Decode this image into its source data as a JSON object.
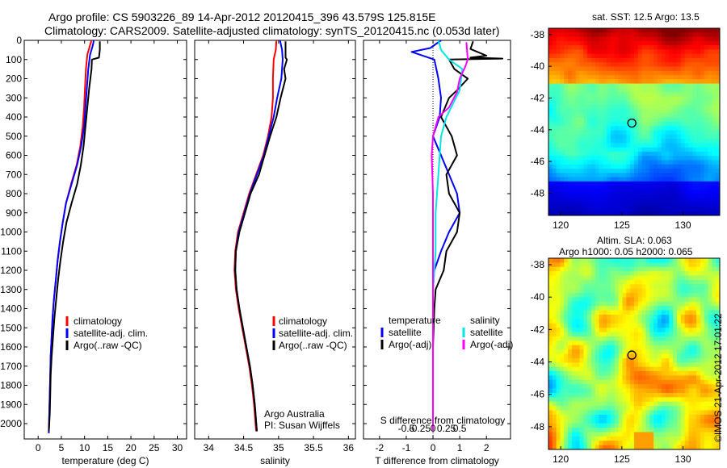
{
  "figure": {
    "title_line1": "Argo profile: CS 5903226_89 14-Apr-2012 20120415_396 43.579S 125.815E",
    "title_line2": "Climatology: CARS2009. Satellite-adjusted climatology: synTS_20120415.nc (0.053d later)",
    "side_caption": "©IMOS 21-Apr-2012 17:01:22",
    "credit_line1": "Argo Australia",
    "credit_line2": "PI: Susan Wijffels"
  },
  "colors": {
    "climatology": "#ff0000",
    "satellite": "#0000ff",
    "argo": "#000000",
    "salinity_satellite": "#00e5e5",
    "salinity_argo": "#ff00ff"
  },
  "chart_data": [
    {
      "type": "line",
      "xlabel": "temperature (deg C)",
      "ylabel": "",
      "xlim": [
        -3,
        32
      ],
      "ylim": [
        2080,
        0
      ],
      "xticks": [
        0,
        5,
        10,
        15,
        20,
        25,
        30
      ],
      "yticks": [
        0,
        100,
        200,
        300,
        400,
        500,
        600,
        700,
        800,
        900,
        1000,
        1100,
        1200,
        1300,
        1400,
        1500,
        1600,
        1700,
        1800,
        1900,
        2000
      ],
      "legend": [
        "climatology",
        "satellite-adj. clim.",
        "Argo(..raw -QC)"
      ],
      "series": [
        {
          "name": "climatology",
          "color": "#ff0000",
          "x": [
            11.5,
            11.2,
            10.6,
            10.3,
            10.1,
            9.9,
            9.6,
            9.1,
            8.3,
            7.1,
            6.0,
            5.3,
            4.7,
            4.2,
            3.8,
            3.4,
            3.1,
            2.9,
            2.7,
            2.6,
            2.5,
            2.4,
            2.3
          ],
          "y": [
            0,
            25,
            75,
            150,
            250,
            350,
            450,
            550,
            650,
            750,
            850,
            950,
            1050,
            1150,
            1250,
            1350,
            1450,
            1550,
            1650,
            1750,
            1850,
            1950,
            2050
          ]
        },
        {
          "name": "satellite-adj. clim.",
          "color": "#0000ff",
          "x": [
            12.0,
            11.8,
            11.2,
            10.8,
            10.5,
            10.2,
            9.9,
            9.3,
            8.4,
            7.2,
            6.0,
            5.3,
            4.7,
            4.2,
            3.8,
            3.4,
            3.1,
            2.9,
            2.7,
            2.6,
            2.5,
            2.4,
            2.3
          ],
          "y": [
            0,
            25,
            75,
            150,
            250,
            350,
            450,
            550,
            650,
            750,
            850,
            950,
            1050,
            1150,
            1250,
            1350,
            1450,
            1550,
            1650,
            1750,
            1850,
            1950,
            2050
          ]
        },
        {
          "name": "Argo(..raw -QC)",
          "color": "#000000",
          "x": [
            13.3,
            13.3,
            13.1,
            11.6,
            11.5,
            11.0,
            10.6,
            10.2,
            9.8,
            9.2,
            8.4,
            7.2,
            6.1,
            5.4,
            4.8,
            4.3,
            3.9,
            3.5,
            3.2,
            2.9,
            2.7,
            2.6,
            2.5,
            2.4,
            2.3
          ],
          "y": [
            5,
            50,
            90,
            100,
            150,
            250,
            350,
            450,
            550,
            650,
            750,
            850,
            950,
            1050,
            1150,
            1250,
            1350,
            1450,
            1550,
            1650,
            1750,
            1850,
            1950,
            2000,
            2040
          ]
        }
      ]
    },
    {
      "type": "line",
      "xlabel": "salinity",
      "xlim": [
        33.8,
        36.1
      ],
      "ylim": [
        2080,
        0
      ],
      "xticks": [
        34,
        34.5,
        35,
        35.5,
        36
      ],
      "legend": [
        "climatology",
        "satellite-adj. clim.",
        "Argo(..raw -QC)"
      ],
      "series": [
        {
          "name": "climatology",
          "color": "#ff0000",
          "x": [
            34.97,
            34.96,
            34.93,
            34.92,
            34.92,
            34.9,
            34.85,
            34.78,
            34.68,
            34.58,
            34.5,
            34.42,
            34.38,
            34.37,
            34.39,
            34.43,
            34.48,
            34.53,
            34.58,
            34.62,
            34.65,
            34.68
          ],
          "y": [
            0,
            50,
            100,
            200,
            300,
            400,
            500,
            600,
            700,
            800,
            900,
            1000,
            1100,
            1200,
            1300,
            1400,
            1500,
            1600,
            1700,
            1800,
            1900,
            2040
          ]
        },
        {
          "name": "satellite-adj. clim.",
          "color": "#0000ff",
          "x": [
            35.02,
            35.05,
            35.06,
            35.04,
            34.98,
            34.93,
            34.86,
            34.79,
            34.69,
            34.59,
            34.51,
            34.43,
            34.39,
            34.38,
            34.4,
            34.44,
            34.49,
            34.54,
            34.59,
            34.63,
            34.66,
            34.69
          ],
          "y": [
            0,
            50,
            100,
            200,
            300,
            400,
            500,
            600,
            700,
            800,
            900,
            1000,
            1100,
            1200,
            1300,
            1400,
            1500,
            1600,
            1700,
            1800,
            1900,
            2040
          ]
        },
        {
          "name": "Argo(..raw -QC)",
          "color": "#000000",
          "x": [
            35.1,
            35.1,
            35.12,
            35.08,
            35.1,
            35.03,
            34.97,
            34.88,
            34.8,
            34.72,
            34.6,
            34.52,
            34.44,
            34.39,
            34.38,
            34.4,
            34.44,
            34.49,
            34.54,
            34.59,
            34.63,
            34.66,
            34.69
          ],
          "y": [
            5,
            90,
            100,
            150,
            200,
            300,
            400,
            500,
            600,
            700,
            800,
            900,
            1000,
            1100,
            1200,
            1300,
            1400,
            1500,
            1600,
            1700,
            1800,
            1900,
            2040
          ]
        }
      ]
    },
    {
      "type": "line",
      "xlabel": "T difference from climatology",
      "xlabel_top": "S difference from climatology",
      "xlim": [
        -2.6,
        2.9
      ],
      "ylim": [
        2080,
        0
      ],
      "xticks": [
        -2,
        -1,
        0,
        1,
        2
      ],
      "xticks_top": [
        "-0.5",
        "-0.25",
        "0",
        "0.25",
        "0.5"
      ],
      "legend_temperature_title": "temperature",
      "legend_salinity_title": "salinity",
      "legend": [
        "satellite",
        "Argo(-adj)",
        "satellite",
        "Argo(-adj)"
      ],
      "series": [
        {
          "name": "satellite",
          "group": "temperature",
          "color": "#0000ff",
          "x": [
            0.3,
            -0.1,
            -0.8,
            0.05,
            0.2,
            0.3,
            0.25,
            0.0,
            0.3,
            0.6,
            0.9,
            1.0,
            0.6,
            0.3,
            0.05,
            0.0,
            0.0,
            0.0,
            0.0,
            0.0,
            0.0,
            0.0
          ],
          "y": [
            0,
            40,
            60,
            100,
            200,
            300,
            400,
            500,
            600,
            700,
            800,
            900,
            1000,
            1100,
            1200,
            1300,
            1400,
            1500,
            1600,
            1700,
            1800,
            2040
          ]
        },
        {
          "name": "Argo(-adj)",
          "group": "temperature",
          "color": "#000000",
          "x": [
            1.5,
            1.4,
            2.0,
            1.4,
            2.6,
            0.6,
            0.8,
            1.3,
            0.9,
            0.6,
            0.3,
            0.7,
            0.9,
            0.5,
            0.6,
            1.0,
            0.9,
            0.5,
            0.4,
            0.1,
            0.05,
            0.0,
            0.0,
            0.0,
            0.0
          ],
          "y": [
            5,
            45,
            80,
            90,
            95,
            100,
            150,
            200,
            260,
            300,
            400,
            500,
            600,
            700,
            800,
            900,
            1000,
            1100,
            1200,
            1300,
            1400,
            1600,
            1800,
            1900,
            2040
          ]
        },
        {
          "name": "satellite",
          "group": "salinity",
          "color": "#00e5e5",
          "x": [
            0.2,
            0.3,
            0.6,
            1.1,
            1.0,
            0.5,
            0.3,
            0.2,
            0.1,
            0.1,
            0.05,
            0.0,
            0.0,
            0.0,
            0.0,
            0.0,
            0.0,
            0.0
          ],
          "y": [
            0,
            50,
            100,
            150,
            260,
            400,
            500,
            700,
            900,
            1100,
            1200,
            1300,
            1400,
            1500,
            1600,
            1700,
            1800,
            2040
          ]
        },
        {
          "name": "Argo(-adj)",
          "group": "salinity",
          "color": "#ff00ff",
          "x": [
            1.25,
            1.3,
            1.2,
            1.0,
            0.9,
            0.6,
            0.2,
            0.0,
            -0.05,
            0.0,
            0.0,
            0.0,
            0.0
          ],
          "y": [
            10,
            100,
            140,
            200,
            270,
            350,
            400,
            500,
            600,
            800,
            1000,
            1500,
            2040
          ]
        }
      ]
    },
    {
      "type": "heatmap",
      "title": "sat. SST: 12.5  Argo: 13.5",
      "xlim": [
        119,
        133
      ],
      "ylim": [
        -49.4,
        -37.6
      ],
      "xticks": [
        120,
        125,
        130
      ],
      "yticks": [
        -38,
        -40,
        -42,
        -44,
        -46,
        -48
      ],
      "marker": {
        "lon": 125.815,
        "lat": -43.579
      },
      "description_bands": "warm red/orange north, green mid, cyan, deep blue south"
    },
    {
      "type": "heatmap",
      "title_line1": "Altim. SLA: 0.063",
      "title_line2": "Argo h1000: 0.05 h2000: 0.065",
      "xlim": [
        119,
        133
      ],
      "ylim": [
        -49.4,
        -37.6
      ],
      "xticks": [
        120,
        125,
        130
      ],
      "yticks": [
        -38,
        -40,
        -42,
        -44,
        -46,
        -48
      ],
      "marker": {
        "lon": 125.815,
        "lat": -43.579
      }
    }
  ]
}
